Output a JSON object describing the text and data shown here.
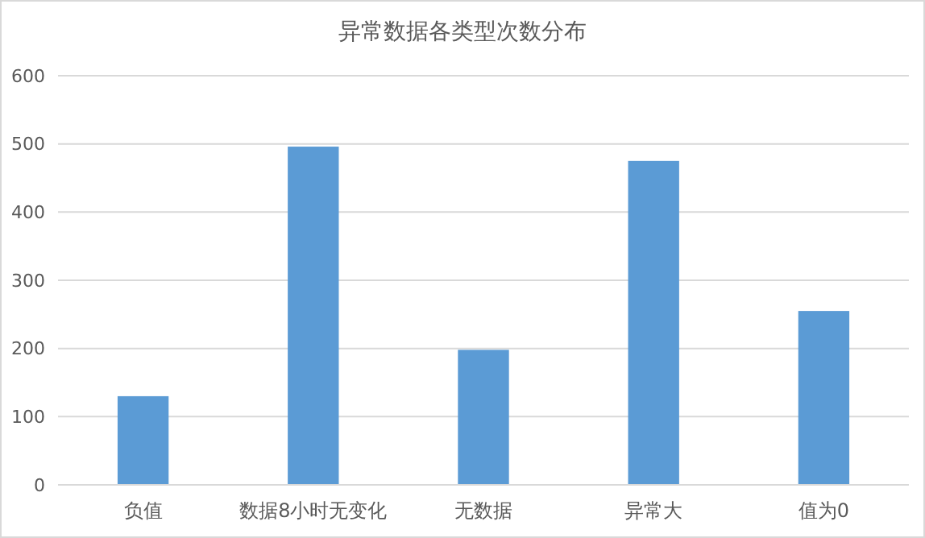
{
  "chart_data": {
    "type": "bar",
    "title": "异常数据各类型次数分布",
    "categories": [
      "负值",
      "数据8小时无变化",
      "无数据",
      "异常大",
      "值为0"
    ],
    "values": [
      130,
      496,
      198,
      475,
      255
    ],
    "color": "#5b9bd5",
    "ylim": [
      0,
      600
    ],
    "yticks": [
      0,
      100,
      200,
      300,
      400,
      500,
      600
    ],
    "grid": "y"
  }
}
